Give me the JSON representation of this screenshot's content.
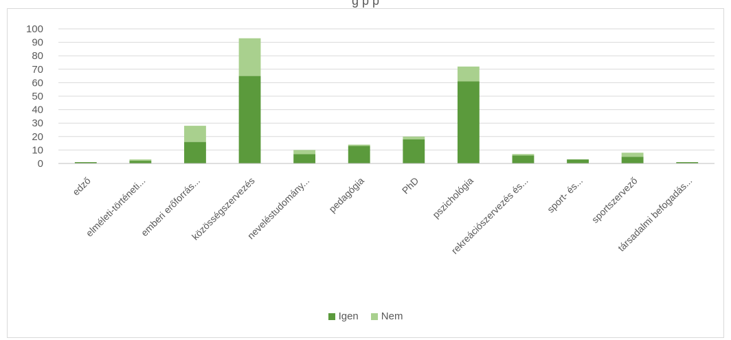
{
  "chart_data": {
    "type": "bar",
    "stacked": true,
    "title": "",
    "title_fragment": "g p p",
    "xlabel": "",
    "ylabel": "",
    "ylim": [
      0,
      100
    ],
    "yticks": [
      0,
      10,
      20,
      30,
      40,
      50,
      60,
      70,
      80,
      90,
      100
    ],
    "grid": true,
    "legend_position": "bottom",
    "categories": [
      "edző",
      "elméleti-történeti...",
      "emberi erőforrás...",
      "közösségszervezés",
      "neveléstudomány...",
      "pedagógia",
      "PhD",
      "pszichológia",
      "rekreációszervezés és...",
      "sport- és...",
      "sportszervező",
      "társadalmi befogadás..."
    ],
    "series": [
      {
        "name": "Igen",
        "color": "#5b9a3c",
        "values": [
          1,
          2,
          16,
          65,
          7,
          13,
          18,
          61,
          6,
          3,
          5,
          1
        ]
      },
      {
        "name": "Nem",
        "color": "#a9d08e",
        "values": [
          0,
          1,
          12,
          28,
          3,
          1,
          2,
          11,
          1,
          0,
          3,
          0
        ]
      }
    ]
  }
}
